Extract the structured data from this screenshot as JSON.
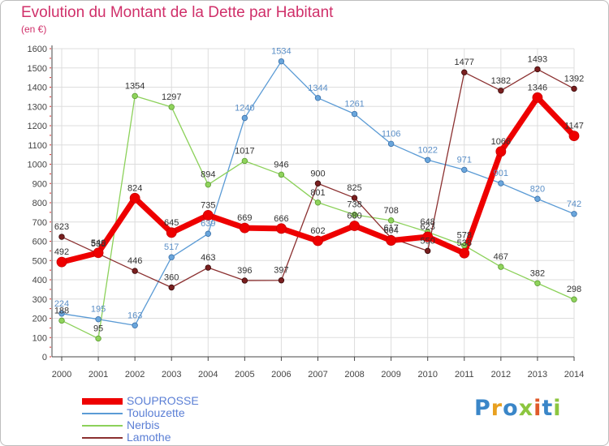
{
  "title": "Evolution du Montant de la Dette par Habitant",
  "subtitle": "(en €)",
  "colors": {
    "title": "#d0306a",
    "grid": "#dddddd",
    "axis": "#444444",
    "tick_marks": "#e03030",
    "label_text": "#555555"
  },
  "chart_data": {
    "type": "line",
    "title": "Evolution du Montant de la Dette par Habitant",
    "subtitle": "(en €)",
    "xlabel": "",
    "ylabel": "",
    "x": [
      "2000",
      "2001",
      "2002",
      "2003",
      "2004",
      "2005",
      "2006",
      "2007",
      "2008",
      "2009",
      "2010",
      "2011",
      "2012",
      "2013",
      "2014"
    ],
    "yticks": [
      0,
      100,
      200,
      300,
      400,
      500,
      600,
      700,
      800,
      900,
      1000,
      1100,
      1200,
      1300,
      1400,
      1500,
      1600
    ],
    "ylim": [
      0,
      1600
    ],
    "grid": true,
    "legend_position": "bottom-left",
    "series": [
      {
        "name": "Toulouzette",
        "color": "#5b9bd5",
        "marker_fill": "#6aa6dc",
        "marker_stroke": "#3a6fa8",
        "label_color": "#5b8fc7",
        "width": 1.3,
        "radius": 3.3,
        "values": [
          224,
          195,
          163,
          517,
          639,
          1240,
          1534,
          1344,
          1261,
          1106,
          1022,
          971,
          901,
          820,
          742
        ],
        "labels": [
          "224",
          "195",
          "163",
          "517",
          "639",
          "1240",
          "1534",
          "1344",
          "1261",
          "1106",
          "1022",
          "971",
          "901",
          "820",
          "742"
        ]
      },
      {
        "name": "Nerbis",
        "color": "#8cd15a",
        "marker_fill": "#8fd35c",
        "marker_stroke": "#5a9a30",
        "label_color": "#333333",
        "width": 1.3,
        "radius": 3.3,
        "values": [
          188,
          95,
          1354,
          1297,
          894,
          1017,
          946,
          801,
          738,
          708,
          648,
          578,
          467,
          382,
          298
        ],
        "labels": [
          "188",
          "95",
          "1354",
          "1297",
          "894",
          "1017",
          "946",
          "801",
          "738",
          "708",
          "648",
          "578",
          "467",
          "382",
          "298"
        ]
      },
      {
        "name": "Lamothe",
        "color": "#8b3030",
        "marker_fill": "#7a1f1f",
        "marker_stroke": "#3a0a0a",
        "label_color": "#333333",
        "width": 1.3,
        "radius": 3.3,
        "values": [
          623,
          535,
          446,
          360,
          463,
          396,
          397,
          900,
          825,
          617,
          550,
          1477,
          1382,
          1493,
          1392
        ],
        "labels": [
          "623",
          "535",
          "446",
          "360",
          "463",
          "396",
          "397",
          "900",
          "825",
          "617",
          "550",
          "1477",
          "1382",
          "1493",
          "1392"
        ]
      },
      {
        "name": "SOUPROSSE",
        "color": "#ee0000",
        "marker_fill": "#ee0000",
        "marker_stroke": "#cc0000",
        "label_color": "#333333",
        "width": 7,
        "radius": 6,
        "values": [
          492,
          540,
          824,
          645,
          735,
          669,
          666,
          602,
          680,
          604,
          623,
          538,
          1066,
          1346,
          1147
        ],
        "labels": [
          "492",
          "540",
          "824",
          "645",
          "735",
          "669",
          "666",
          "602",
          "680",
          "604",
          "623",
          "538",
          "1066",
          "1346",
          "1147"
        ]
      }
    ]
  },
  "legend": {
    "items": [
      {
        "name": "SOUPROSSE",
        "color": "#ee0000",
        "text_color": "#5b7fd5",
        "thickness": 8
      },
      {
        "name": "Toulouzette",
        "color": "#5b9bd5",
        "text_color": "#5b7fd5",
        "thickness": 2
      },
      {
        "name": "Nerbis",
        "color": "#8cd15a",
        "text_color": "#5b7fd5",
        "thickness": 2
      },
      {
        "name": "Lamothe",
        "color": "#8b3030",
        "text_color": "#5b7fd5",
        "thickness": 2
      }
    ]
  },
  "logo": {
    "text": "Proxiti",
    "letters": [
      {
        "ch": "P",
        "color": "#3a86c8"
      },
      {
        "ch": "r",
        "color": "#e8a020"
      },
      {
        "ch": "o",
        "color": "#3a86c8"
      },
      {
        "ch": "x",
        "color": "#8cc63f"
      },
      {
        "ch": "i",
        "color": "#e05a2a"
      },
      {
        "ch": "t",
        "color": "#3a86c8"
      },
      {
        "ch": "i",
        "color": "#8cc63f"
      }
    ]
  }
}
